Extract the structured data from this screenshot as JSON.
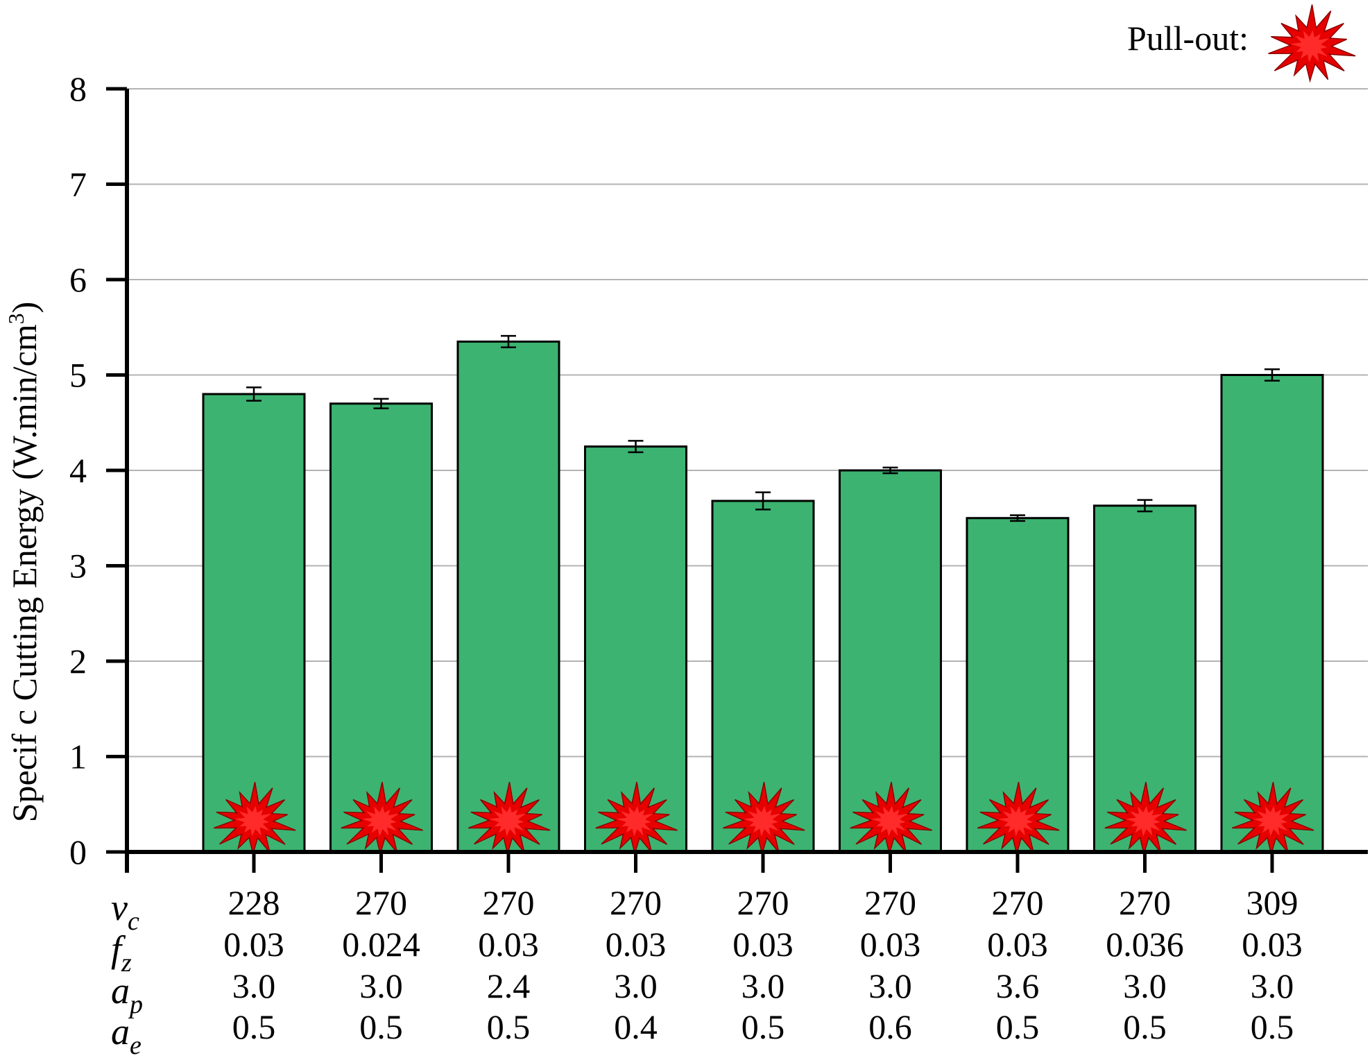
{
  "chart_data": {
    "type": "bar",
    "ylabel": "Specif c Cutting Energy (W.min/cm",
    "ylabel_sup": "3",
    "ylabel_close": ")",
    "ylim": [
      0,
      8
    ],
    "yticks": [
      0,
      1,
      2,
      3,
      4,
      5,
      6,
      7,
      8
    ],
    "grid": true,
    "values": [
      4.8,
      4.7,
      5.35,
      4.25,
      3.68,
      4.0,
      3.5,
      3.63,
      5.0
    ],
    "errors": [
      0.07,
      0.05,
      0.06,
      0.06,
      0.09,
      0.03,
      0.03,
      0.06,
      0.06
    ],
    "bar_color": "#3cb371",
    "marker_color": "#e60000",
    "pullout_all_bars": true,
    "param_rows": [
      {
        "symbol": "v",
        "sub": "c",
        "values": [
          "228",
          "270",
          "270",
          "270",
          "270",
          "270",
          "270",
          "270",
          "309"
        ]
      },
      {
        "symbol": "f",
        "sub": "z",
        "values": [
          "0.03",
          "0.024",
          "0.03",
          "0.03",
          "0.03",
          "0.03",
          "0.03",
          "0.036",
          "0.03"
        ]
      },
      {
        "symbol": "a",
        "sub": "p",
        "values": [
          "3.0",
          "3.0",
          "2.4",
          "3.0",
          "3.0",
          "3.0",
          "3.6",
          "3.0",
          "3.0"
        ]
      },
      {
        "symbol": "a",
        "sub": "e",
        "values": [
          "0.5",
          "0.5",
          "0.5",
          "0.4",
          "0.5",
          "0.6",
          "0.5",
          "0.5",
          "0.5"
        ]
      }
    ],
    "legend": {
      "label": "Pull-out:",
      "icon": "starburst-icon",
      "placement": "top-right"
    }
  }
}
